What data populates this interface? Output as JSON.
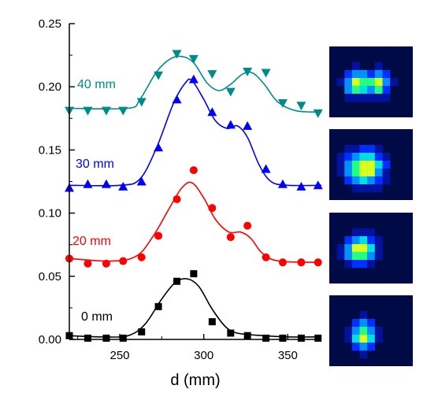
{
  "chart_data": {
    "type": "scatter",
    "title": "",
    "xlabel": "d (mm)",
    "ylabel": "",
    "xlim": [
      220,
      370
    ],
    "ylim": [
      0,
      0.25
    ],
    "x_ticks": [
      "250",
      "300",
      "350"
    ],
    "y_ticks": [
      "0.00",
      "0.05",
      "0.10",
      "0.15",
      "0.20",
      "0.25"
    ],
    "series": [
      {
        "name": "0 mm",
        "color": "#000000",
        "marker": "square",
        "x": [
          220,
          231,
          242,
          252,
          263,
          273,
          284,
          294,
          305,
          316,
          326,
          337,
          347,
          358,
          368
        ],
        "y": [
          0.003,
          0.001,
          0.001,
          0.001,
          0.006,
          0.026,
          0.046,
          0.052,
          0.014,
          0.005,
          0.003,
          0.001,
          0.001,
          0.001,
          0.001
        ],
        "fit": [
          [
            220,
            0.003
          ],
          [
            240,
            0.002
          ],
          [
            255,
            0.003
          ],
          [
            265,
            0.012
          ],
          [
            275,
            0.032
          ],
          [
            283,
            0.045
          ],
          [
            290,
            0.048
          ],
          [
            297,
            0.042
          ],
          [
            305,
            0.024
          ],
          [
            313,
            0.01
          ],
          [
            320,
            0.005
          ],
          [
            335,
            0.003
          ],
          [
            350,
            0.002
          ],
          [
            370,
            0.002
          ]
        ]
      },
      {
        "name": "20 mm",
        "color": "#ff0000",
        "marker": "circle",
        "x": [
          220,
          231,
          242,
          252,
          263,
          273,
          284,
          294,
          305,
          316,
          326,
          337,
          347,
          358,
          368
        ],
        "y": [
          0.064,
          0.06,
          0.06,
          0.062,
          0.065,
          0.082,
          0.111,
          0.134,
          0.104,
          0.081,
          0.09,
          0.065,
          0.061,
          0.061,
          0.061
        ],
        "fit": [
          [
            220,
            0.064
          ],
          [
            245,
            0.062
          ],
          [
            260,
            0.066
          ],
          [
            270,
            0.082
          ],
          [
            280,
            0.105
          ],
          [
            287,
            0.12
          ],
          [
            293,
            0.124
          ],
          [
            300,
            0.112
          ],
          [
            307,
            0.095
          ],
          [
            315,
            0.085
          ],
          [
            322,
            0.085
          ],
          [
            328,
            0.08
          ],
          [
            335,
            0.068
          ],
          [
            345,
            0.062
          ],
          [
            370,
            0.061
          ]
        ]
      },
      {
        "name": "30 mm",
        "color": "#0000ff",
        "marker": "triangle-up",
        "x": [
          220,
          231,
          242,
          252,
          263,
          273,
          284,
          294,
          305,
          316,
          326,
          337,
          347,
          358,
          368
        ],
        "y": [
          0.12,
          0.123,
          0.123,
          0.121,
          0.125,
          0.152,
          0.19,
          0.206,
          0.18,
          0.17,
          0.169,
          0.135,
          0.123,
          0.121,
          0.122
        ],
        "fit": [
          [
            220,
            0.122
          ],
          [
            250,
            0.122
          ],
          [
            262,
            0.127
          ],
          [
            272,
            0.152
          ],
          [
            282,
            0.187
          ],
          [
            289,
            0.203
          ],
          [
            293,
            0.205
          ],
          [
            300,
            0.19
          ],
          [
            307,
            0.173
          ],
          [
            314,
            0.167
          ],
          [
            320,
            0.169
          ],
          [
            326,
            0.16
          ],
          [
            333,
            0.138
          ],
          [
            340,
            0.125
          ],
          [
            350,
            0.122
          ],
          [
            370,
            0.122
          ]
        ]
      },
      {
        "name": "40 mm",
        "color": "#008b8b",
        "marker": "triangle-down",
        "x": [
          220,
          231,
          242,
          252,
          263,
          273,
          284,
          294,
          305,
          316,
          326,
          337,
          347,
          358,
          368
        ],
        "y": [
          0.181,
          0.181,
          0.181,
          0.181,
          0.188,
          0.209,
          0.226,
          0.222,
          0.21,
          0.196,
          0.212,
          0.211,
          0.187,
          0.185,
          0.179
        ],
        "fit": [
          [
            220,
            0.183
          ],
          [
            255,
            0.183
          ],
          [
            262,
            0.19
          ],
          [
            272,
            0.212
          ],
          [
            280,
            0.222
          ],
          [
            287,
            0.224
          ],
          [
            294,
            0.219
          ],
          [
            302,
            0.203
          ],
          [
            309,
            0.197
          ],
          [
            316,
            0.202
          ],
          [
            323,
            0.21
          ],
          [
            329,
            0.211
          ],
          [
            336,
            0.202
          ],
          [
            344,
            0.188
          ],
          [
            355,
            0.181
          ],
          [
            370,
            0.18
          ]
        ]
      }
    ],
    "thumbnails": [
      {
        "series": "40 mm",
        "pattern": "double"
      },
      {
        "series": "30 mm",
        "pattern": "single-large"
      },
      {
        "series": "20 mm",
        "pattern": "single"
      },
      {
        "series": "0 mm",
        "pattern": "small"
      }
    ],
    "grid": false,
    "legend": "labels next to curves"
  }
}
